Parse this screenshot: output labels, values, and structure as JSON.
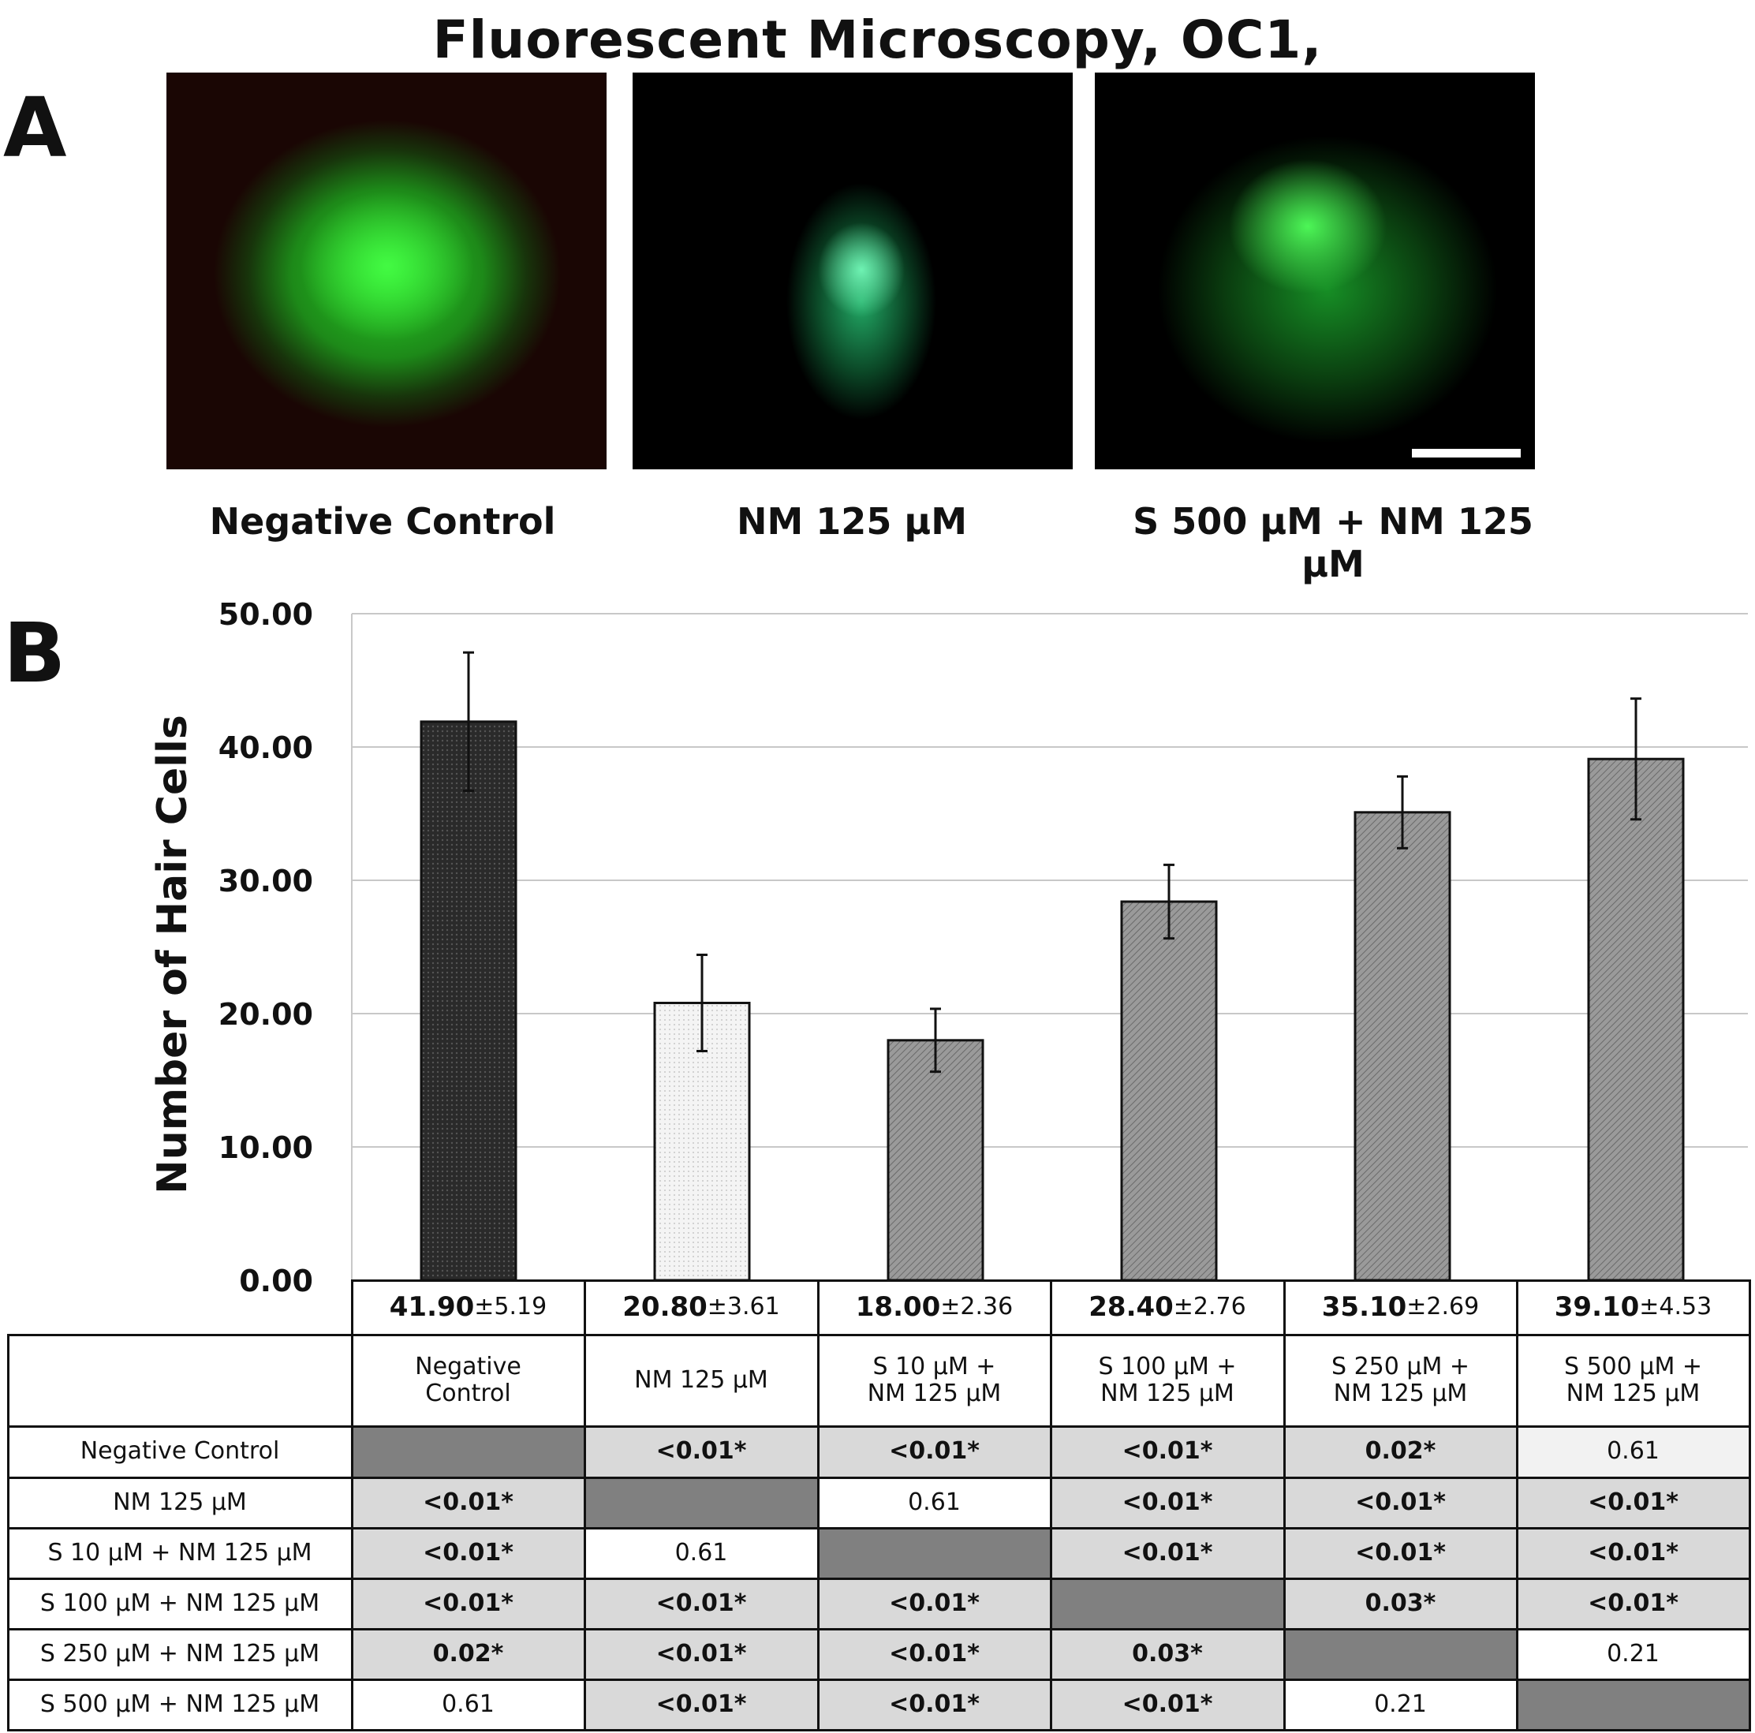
{
  "figure": {
    "title": "Fluorescent Microscopy, OC1,",
    "panel_a_letter": "A",
    "panel_b_letter": "B"
  },
  "micrographs": [
    {
      "label": "Negative Control"
    },
    {
      "label": "NM 125 μM"
    },
    {
      "label": "S 500 μM + NM 125 μM"
    }
  ],
  "chart_data": {
    "type": "bar",
    "ylabel": "Number of  Hair Cells",
    "ylim": [
      0,
      50
    ],
    "yticks": [
      "0.00",
      "10.00",
      "20.00",
      "30.00",
      "40.00",
      "50.00"
    ],
    "grid": true,
    "categories": [
      "Negative Control",
      "NM 125 μM",
      "S 10 μM + NM 125 μM",
      "S 100 μM + NM 125 μM",
      "S 250 μM + NM 125 μM",
      "S 500 μM + NM 125 μM"
    ],
    "values": [
      41.9,
      20.8,
      18.0,
      28.4,
      35.1,
      39.1
    ],
    "errors": [
      5.19,
      3.61,
      2.36,
      2.76,
      2.69,
      4.53
    ],
    "bar_colors": [
      "#2a2a2a",
      "#f2f2f2",
      "#8c8c8c",
      "#8c8c8c",
      "#8c8c8c",
      "#8c8c8c"
    ]
  },
  "stats_table": {
    "means": [
      "41.90",
      "20.80",
      "18.00",
      "28.40",
      "35.10",
      "39.10"
    ],
    "sds": [
      "±5.19",
      "±3.61",
      "±2.36",
      "±2.76",
      "±2.69",
      "±4.53"
    ],
    "column_headers": [
      [
        "Negative",
        "Control"
      ],
      [
        "NM 125 μM"
      ],
      [
        "S 10 μM +",
        "NM 125 μM"
      ],
      [
        "S 100 μM +",
        "NM 125 μM"
      ],
      [
        "S 250 μM +",
        "NM 125 μM"
      ],
      [
        "S 500 μM +",
        "NM 125 μM"
      ]
    ],
    "row_headers": [
      "Negative Control",
      "NM 125 μM",
      "S 10 μM + NM 125 μM",
      "S 100 μM + NM 125 μM",
      "S 250 μM + NM 125 μM",
      "S 500 μM + NM 125 μM"
    ],
    "p_values": [
      [
        "",
        "<0.01*",
        "<0.01*",
        "<0.01*",
        "0.02*",
        "0.61"
      ],
      [
        "<0.01*",
        "",
        "0.61",
        "<0.01*",
        "<0.01*",
        "<0.01*"
      ],
      [
        "<0.01*",
        "0.61",
        "",
        "<0.01*",
        "<0.01*",
        "<0.01*"
      ],
      [
        "<0.01*",
        "<0.01*",
        "<0.01*",
        "",
        "0.03*",
        "<0.01*"
      ],
      [
        "0.02*",
        "<0.01*",
        "<0.01*",
        "0.03*",
        "",
        "0.21"
      ],
      [
        "0.61",
        "<0.01*",
        "<0.01*",
        "<0.01*",
        "0.21",
        ""
      ]
    ],
    "colors": {
      "diagonal": "#808080",
      "significant": "#d9d9d9",
      "nonsignificant": "#ffffff",
      "light": "#f2f2f2"
    }
  }
}
